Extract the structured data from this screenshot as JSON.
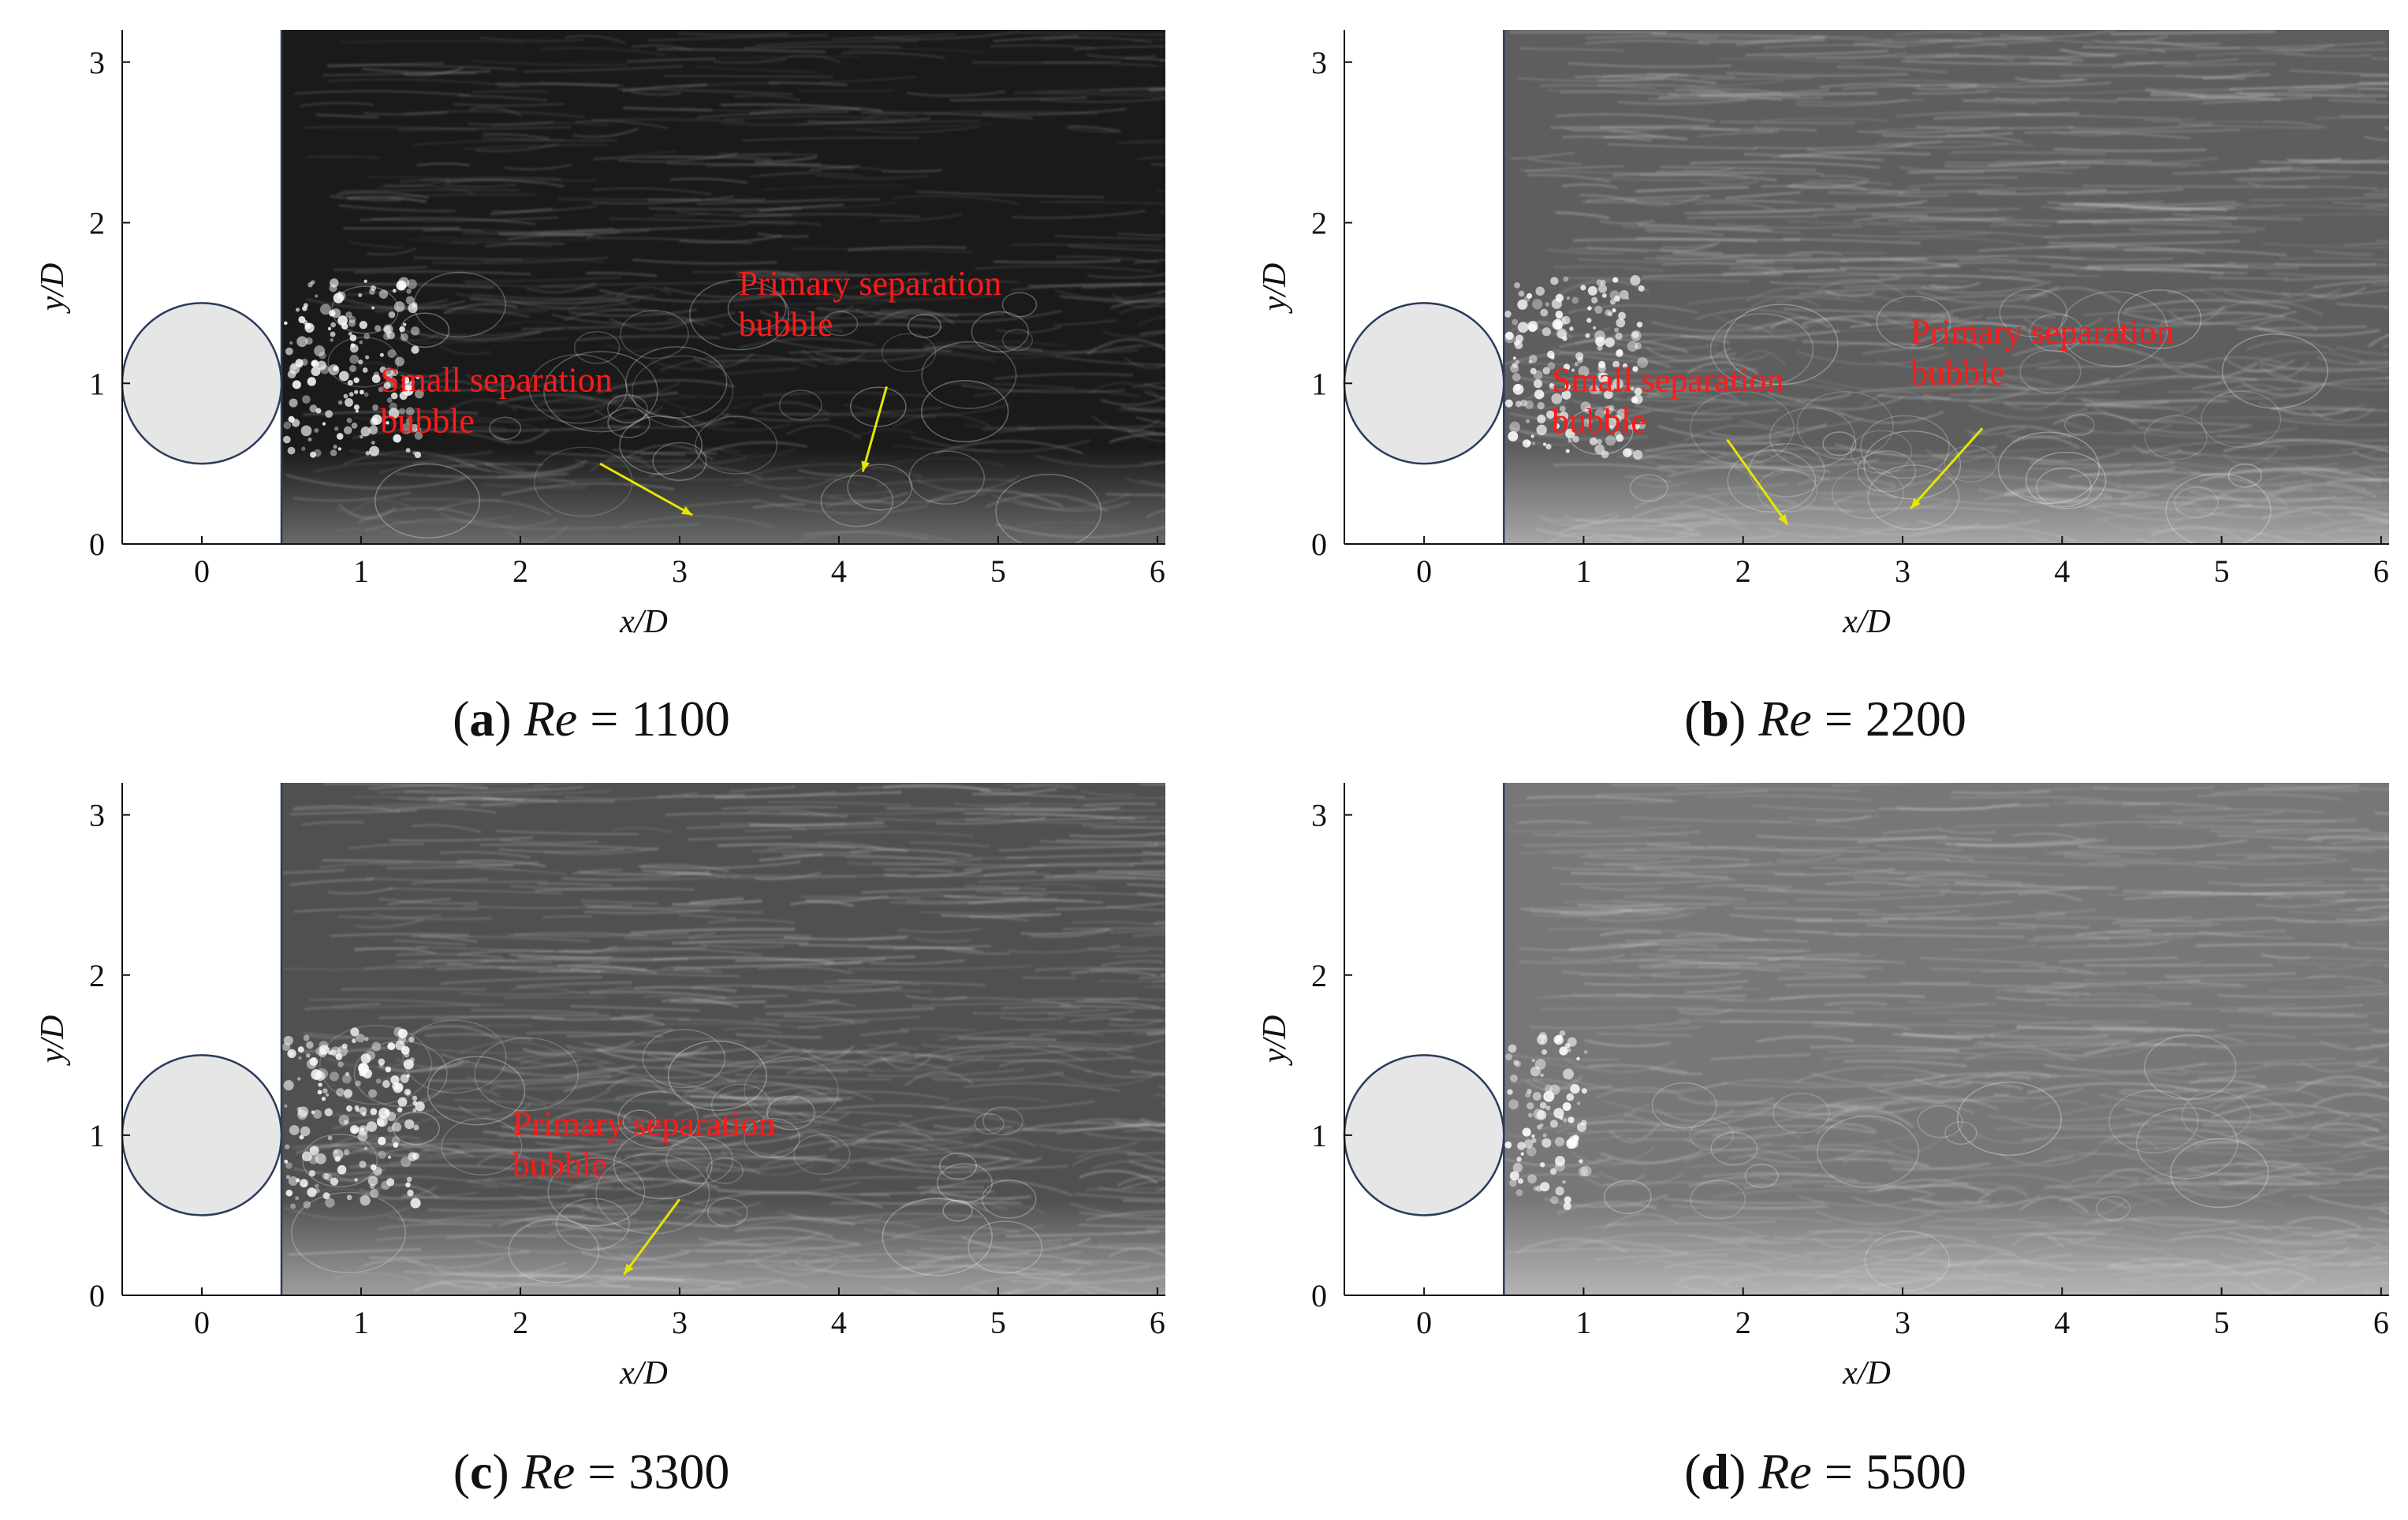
{
  "figure": {
    "panels": [
      {
        "id": "a",
        "caption": {
          "letter": "a",
          "re_label": "Re",
          "re_value": "1100"
        },
        "background": {
          "tone": "dark",
          "base": "#1a1a1a",
          "streak": "#d0d0d0"
        },
        "annotations": [
          {
            "lines": [
              "Primary separation",
              "bubble"
            ],
            "arrow_from": [
              4.3,
              0.98
            ],
            "arrow_to": [
              4.15,
              0.45
            ]
          },
          {
            "lines": [
              "Small separation",
              "bubble"
            ],
            "arrow_from": [
              2.5,
              0.5
            ],
            "arrow_to": [
              3.08,
              0.18
            ]
          }
        ]
      },
      {
        "id": "b",
        "caption": {
          "letter": "b",
          "re_value": "2200",
          "re_label": "Re"
        },
        "background": {
          "tone": "medium",
          "base": "#5e5e5e",
          "streak": "#d8d8d8"
        },
        "annotations": [
          {
            "lines": [
              "Primary separation",
              "bubble"
            ],
            "arrow_from": [
              3.5,
              0.72
            ],
            "arrow_to": [
              3.05,
              0.22
            ]
          },
          {
            "lines": [
              "Small separation",
              "bubble"
            ],
            "arrow_from": [
              1.9,
              0.65
            ],
            "arrow_to": [
              2.28,
              0.12
            ]
          }
        ]
      },
      {
        "id": "c",
        "caption": {
          "letter": "c",
          "re_label": "Re",
          "re_value": "3300"
        },
        "background": {
          "tone": "medium",
          "base": "#505050",
          "streak": "#dadada"
        },
        "annotations": [
          {
            "lines": [
              "Primary separation",
              "bubble"
            ],
            "arrow_from": [
              3.0,
              0.6
            ],
            "arrow_to": [
              2.65,
              0.13
            ]
          }
        ]
      },
      {
        "id": "d",
        "caption": {
          "letter": "d",
          "re_label": "Re",
          "re_value": "5500"
        },
        "background": {
          "tone": "light",
          "base": "#777777",
          "streak": "#d4d4d4"
        },
        "annotations": []
      }
    ],
    "axes": {
      "xlabel": "x/D",
      "ylabel": "y/D",
      "xlim": [
        -0.5,
        6.05
      ],
      "ylim": [
        0,
        3.2
      ],
      "xticks": [
        "0",
        "1",
        "2",
        "3",
        "4",
        "5",
        "6"
      ],
      "yticks": [
        "0",
        "1",
        "2",
        "3"
      ]
    },
    "cylinder": {
      "center": [
        0,
        1
      ],
      "radius": 0.5,
      "fill": "#e6e6e6",
      "stroke": "#2b3d5c"
    },
    "wall": {
      "x": 0.5
    },
    "colors": {
      "annotation": "#ff1a1a",
      "arrow": "#e6e600",
      "axis": "#111111"
    }
  }
}
